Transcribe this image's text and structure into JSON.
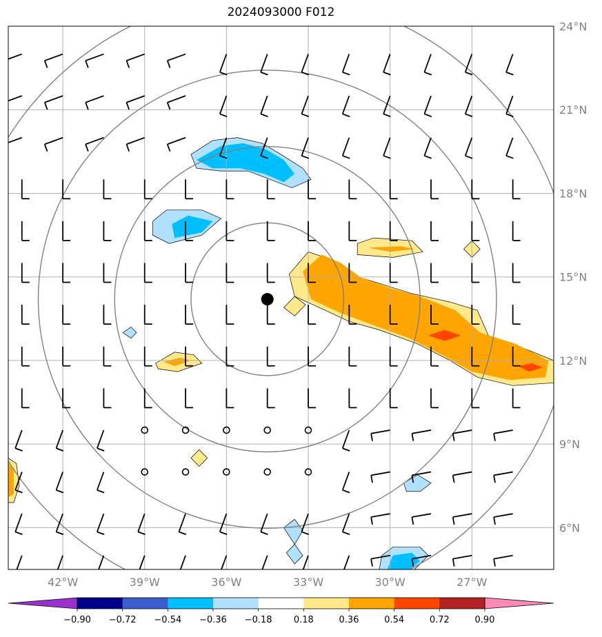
{
  "title": "2024093000 F012",
  "map": {
    "lon_range": [
      -44.0,
      -24.0
    ],
    "lat_range": [
      4.5,
      24.0
    ],
    "lon_ticks": [
      {
        "value": -42,
        "label": "42°W"
      },
      {
        "value": -39,
        "label": "39°W"
      },
      {
        "value": -36,
        "label": "36°W"
      },
      {
        "value": -33,
        "label": "33°W"
      },
      {
        "value": -30,
        "label": "30°W"
      },
      {
        "value": -27,
        "label": "27°W"
      }
    ],
    "lat_ticks": [
      {
        "value": 24,
        "label": "24°N"
      },
      {
        "value": 21,
        "label": "21°N"
      },
      {
        "value": 18,
        "label": "18°N"
      },
      {
        "value": 15,
        "label": "15°N"
      },
      {
        "value": 12,
        "label": "12°N"
      },
      {
        "value": 9,
        "label": "9°N"
      },
      {
        "value": 6,
        "label": "6°N"
      }
    ],
    "storm_center": {
      "lon": -34.5,
      "lat": 14.2
    },
    "range_rings_deg": [
      2.8,
      5.6,
      8.4,
      11.2
    ],
    "grid_color": "#b0b0b0",
    "ring_color": "#808080"
  },
  "colorbar": {
    "labels": [
      "−0.90",
      "−0.72",
      "−0.54",
      "−0.36",
      "−0.18",
      "0.18",
      "0.36",
      "0.54",
      "0.72",
      "0.90"
    ],
    "under_color": "#9932cc",
    "over_color": "#ff88b4",
    "colors": [
      "#00008b",
      "#3a5fcd",
      "#00bfff",
      "#b0e2ff",
      "#ffffff",
      "#ffe98a",
      "#ffa500",
      "#ff4500",
      "#b22222"
    ]
  },
  "shaded_regions": [
    {
      "level": "-0.36",
      "color": "#b0e2ff",
      "points": [
        [
          -37.3,
          19.4
        ],
        [
          -36.5,
          19.9
        ],
        [
          -35.6,
          20.0
        ],
        [
          -34.7,
          19.8
        ],
        [
          -34.0,
          19.4
        ],
        [
          -33.2,
          18.9
        ],
        [
          -32.9,
          18.5
        ],
        [
          -33.6,
          18.2
        ],
        [
          -34.4,
          18.5
        ],
        [
          -35.2,
          18.8
        ],
        [
          -36.2,
          18.8
        ],
        [
          -37.1,
          18.9
        ]
      ]
    },
    {
      "level": "-0.54",
      "color": "#00bfff",
      "points": [
        [
          -37.1,
          19.2
        ],
        [
          -36.2,
          19.7
        ],
        [
          -35.4,
          19.8
        ],
        [
          -34.6,
          19.6
        ],
        [
          -33.9,
          19.2
        ],
        [
          -33.5,
          18.7
        ],
        [
          -33.9,
          18.4
        ],
        [
          -34.6,
          18.7
        ],
        [
          -35.5,
          18.9
        ],
        [
          -36.5,
          18.9
        ]
      ]
    },
    {
      "level": "-0.36",
      "color": "#b0e2ff",
      "points": [
        [
          -38.7,
          17.0
        ],
        [
          -38.2,
          17.4
        ],
        [
          -36.9,
          17.4
        ],
        [
          -36.2,
          17.1
        ],
        [
          -36.9,
          16.5
        ],
        [
          -38.1,
          16.2
        ],
        [
          -38.7,
          16.5
        ]
      ]
    },
    {
      "level": "-0.54",
      "color": "#00bfff",
      "points": [
        [
          -38.0,
          16.9
        ],
        [
          -37.4,
          17.2
        ],
        [
          -36.5,
          17.0
        ],
        [
          -36.9,
          16.6
        ],
        [
          -37.9,
          16.4
        ]
      ]
    },
    {
      "level": "0.18",
      "color": "#ffe98a",
      "points": [
        [
          -33.7,
          15.1
        ],
        [
          -33.0,
          15.9
        ],
        [
          -32.1,
          15.6
        ],
        [
          -31.5,
          15.1
        ],
        [
          -30.5,
          14.8
        ],
        [
          -29.2,
          14.4
        ],
        [
          -27.8,
          14.1
        ],
        [
          -26.8,
          13.8
        ],
        [
          -26.4,
          12.9
        ],
        [
          -25.0,
          12.4
        ],
        [
          -24.0,
          12.0
        ],
        [
          -24.0,
          11.2
        ],
        [
          -25.5,
          11.1
        ],
        [
          -26.8,
          11.4
        ],
        [
          -27.8,
          12.0
        ],
        [
          -29.0,
          12.6
        ],
        [
          -30.4,
          13.1
        ],
        [
          -31.5,
          13.4
        ],
        [
          -32.6,
          13.9
        ],
        [
          -33.5,
          14.3
        ]
      ]
    },
    {
      "level": "0.36",
      "color": "#ffa500",
      "points": [
        [
          -33.2,
          15.2
        ],
        [
          -32.5,
          15.8
        ],
        [
          -31.8,
          15.5
        ],
        [
          -31.1,
          15.0
        ],
        [
          -30.0,
          14.6
        ],
        [
          -28.9,
          14.3
        ],
        [
          -27.6,
          13.8
        ],
        [
          -26.7,
          13.0
        ],
        [
          -25.4,
          12.6
        ],
        [
          -24.2,
          12.0
        ],
        [
          -24.3,
          11.4
        ],
        [
          -25.6,
          11.3
        ],
        [
          -27.0,
          11.6
        ],
        [
          -28.1,
          12.2
        ],
        [
          -29.3,
          12.8
        ],
        [
          -30.7,
          13.3
        ],
        [
          -31.8,
          13.7
        ],
        [
          -32.9,
          14.2
        ]
      ]
    },
    {
      "level": "0.54",
      "color": "#ff4500",
      "points": [
        [
          -28.6,
          12.9
        ],
        [
          -28.0,
          13.1
        ],
        [
          -27.4,
          12.9
        ],
        [
          -28.0,
          12.7
        ]
      ]
    },
    {
      "level": "0.54",
      "color": "#ff4500",
      "points": [
        [
          -25.3,
          11.8
        ],
        [
          -24.8,
          11.9
        ],
        [
          -24.4,
          11.75
        ],
        [
          -24.9,
          11.6
        ]
      ]
    },
    {
      "level": "0.18",
      "color": "#ffe98a",
      "points": [
        [
          -31.2,
          16.2
        ],
        [
          -30.6,
          16.4
        ],
        [
          -29.2,
          16.3
        ],
        [
          -28.8,
          15.9
        ],
        [
          -29.9,
          15.7
        ],
        [
          -31.2,
          15.8
        ]
      ]
    },
    {
      "level": "0.36",
      "color": "#ffa500",
      "points": [
        [
          -30.8,
          16.05
        ],
        [
          -29.6,
          16.1
        ],
        [
          -29.1,
          16.0
        ],
        [
          -30.0,
          15.9
        ]
      ]
    },
    {
      "level": "0.18",
      "color": "#ffe98a",
      "points": [
        [
          -27.3,
          16.0
        ],
        [
          -27.0,
          16.3
        ],
        [
          -26.7,
          16.0
        ],
        [
          -27.0,
          15.7
        ]
      ]
    },
    {
      "level": "0.18",
      "color": "#ffe98a",
      "points": [
        [
          -33.9,
          13.9
        ],
        [
          -33.5,
          14.3
        ],
        [
          -33.1,
          14.0
        ],
        [
          -33.5,
          13.6
        ]
      ]
    },
    {
      "level": "0.18",
      "color": "#ffe98a",
      "points": [
        [
          -38.6,
          11.9
        ],
        [
          -37.9,
          12.3
        ],
        [
          -37.2,
          12.2
        ],
        [
          -36.9,
          11.9
        ],
        [
          -37.8,
          11.6
        ],
        [
          -38.5,
          11.7
        ]
      ]
    },
    {
      "level": "0.36",
      "color": "#ffa500",
      "points": [
        [
          -38.3,
          11.95
        ],
        [
          -37.7,
          12.1
        ],
        [
          -37.3,
          12.0
        ],
        [
          -37.9,
          11.8
        ]
      ]
    },
    {
      "level": "0.18",
      "color": "#ffe98a",
      "points": [
        [
          -37.3,
          8.5
        ],
        [
          -37.0,
          8.8
        ],
        [
          -36.7,
          8.5
        ],
        [
          -37.0,
          8.2
        ]
      ]
    },
    {
      "level": "0.18",
      "color": "#ffe98a",
      "points": [
        [
          -44.0,
          8.5
        ],
        [
          -43.7,
          8.3
        ],
        [
          -43.6,
          7.5
        ],
        [
          -43.8,
          6.9
        ],
        [
          -44.0,
          6.9
        ]
      ]
    },
    {
      "level": "0.36",
      "color": "#ffa500",
      "points": [
        [
          -44.0,
          8.3
        ],
        [
          -43.8,
          8.1
        ],
        [
          -43.8,
          7.2
        ],
        [
          -44.0,
          7.1
        ]
      ]
    },
    {
      "level": "-0.36",
      "color": "#b0e2ff",
      "points": [
        [
          -39.8,
          13.0
        ],
        [
          -39.5,
          13.2
        ],
        [
          -39.3,
          13.0
        ],
        [
          -39.5,
          12.8
        ]
      ]
    },
    {
      "level": "-0.36",
      "color": "#b0e2ff",
      "points": [
        [
          -29.5,
          7.6
        ],
        [
          -29.0,
          7.9
        ],
        [
          -28.5,
          7.6
        ],
        [
          -28.9,
          7.3
        ],
        [
          -29.4,
          7.3
        ]
      ]
    },
    {
      "level": "-0.36",
      "color": "#b0e2ff",
      "points": [
        [
          -33.9,
          6.0
        ],
        [
          -33.5,
          6.3
        ],
        [
          -33.2,
          5.9
        ],
        [
          -33.5,
          5.4
        ]
      ]
    },
    {
      "level": "-0.36",
      "color": "#b0e2ff",
      "points": [
        [
          -33.8,
          5.1
        ],
        [
          -33.5,
          5.4
        ],
        [
          -33.2,
          5.0
        ],
        [
          -33.5,
          4.7
        ]
      ]
    },
    {
      "level": "-0.36",
      "color": "#b0e2ff",
      "points": [
        [
          -30.4,
          4.5
        ],
        [
          -30.3,
          5.0
        ],
        [
          -29.9,
          5.3
        ],
        [
          -28.9,
          5.3
        ],
        [
          -28.6,
          5.0
        ],
        [
          -29.1,
          4.5
        ]
      ]
    },
    {
      "level": "-0.54",
      "color": "#00bfff",
      "points": [
        [
          -30.1,
          4.5
        ],
        [
          -29.9,
          5.0
        ],
        [
          -29.2,
          5.1
        ],
        [
          -28.9,
          4.8
        ],
        [
          -29.3,
          4.5
        ]
      ]
    }
  ]
}
